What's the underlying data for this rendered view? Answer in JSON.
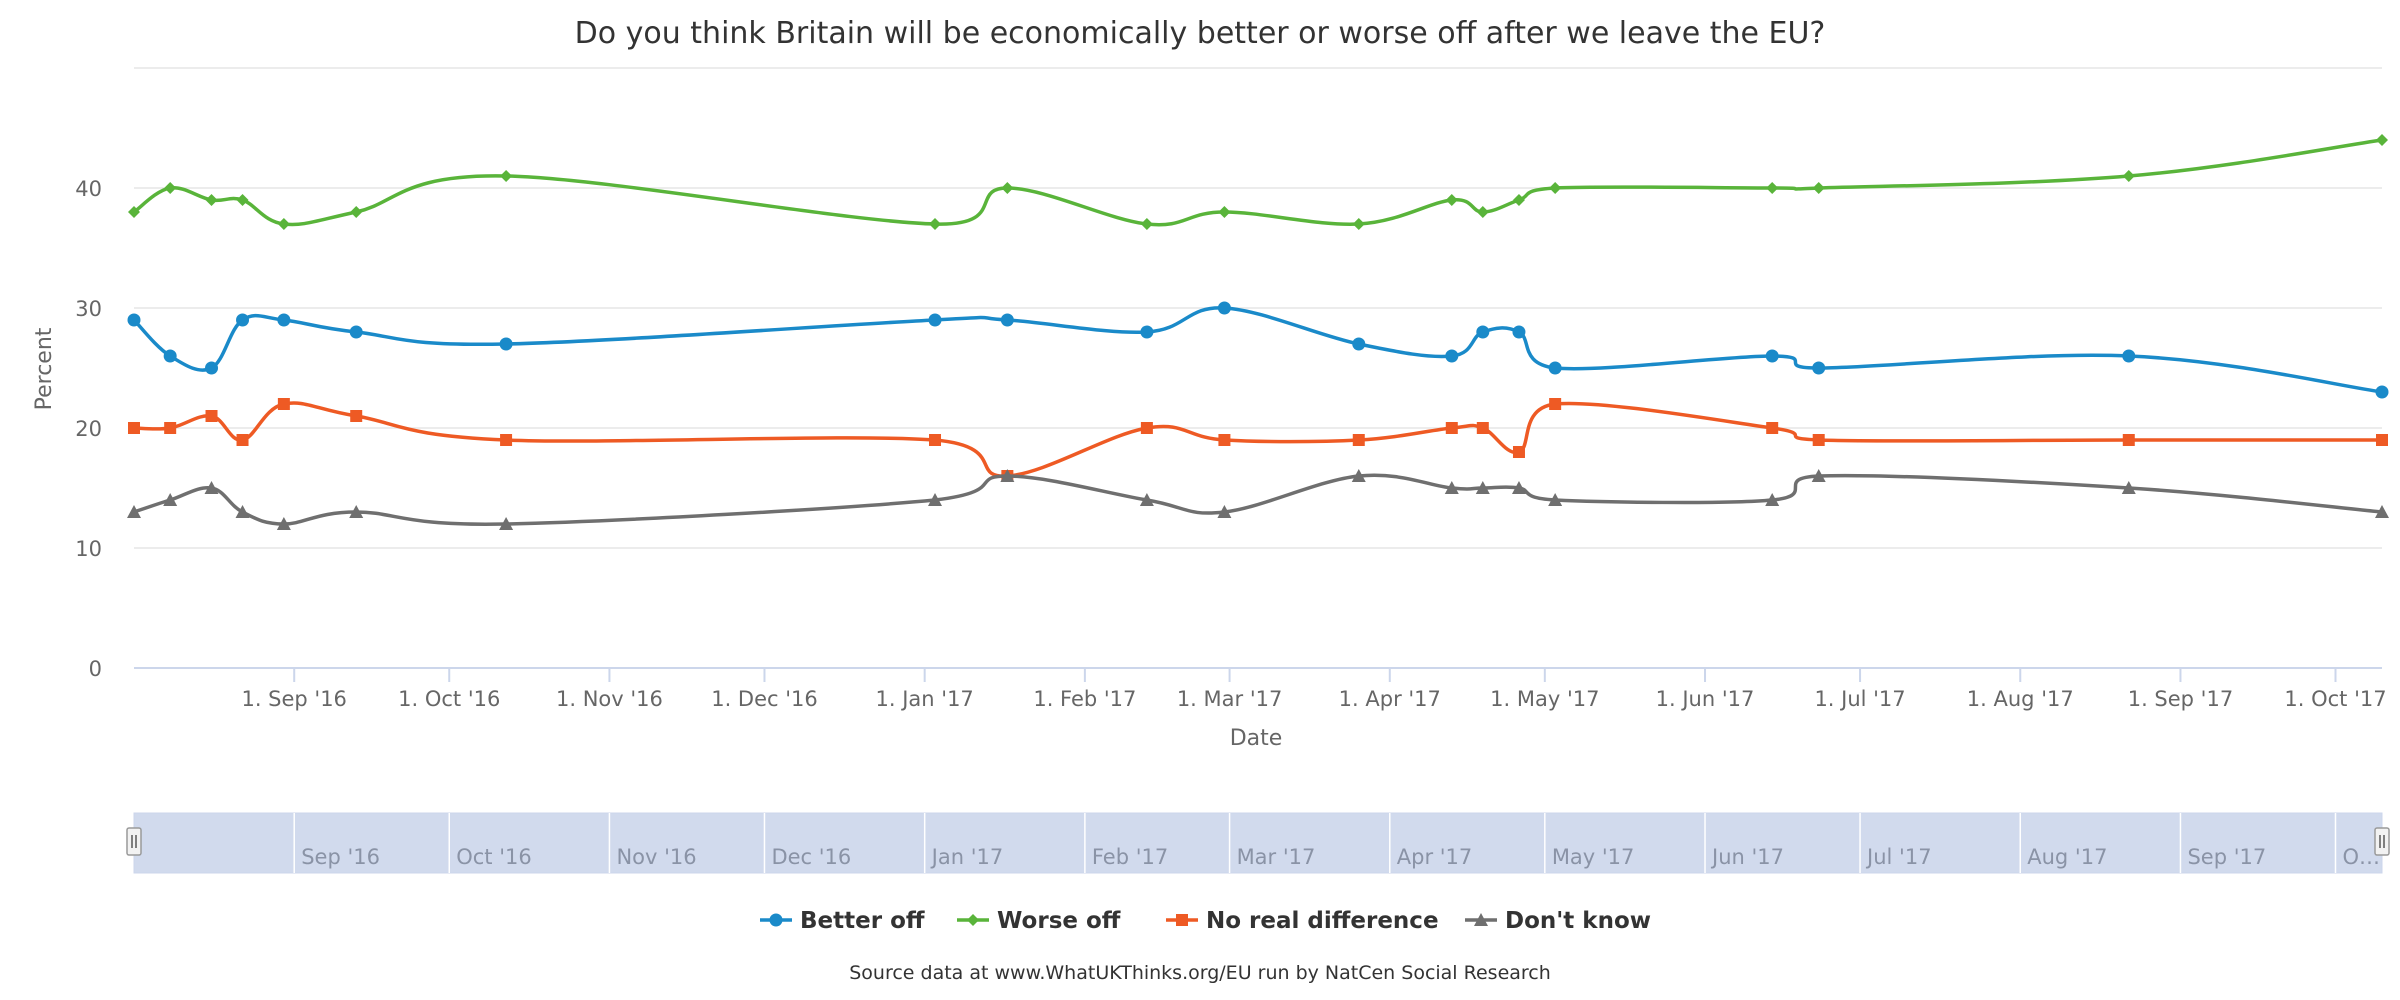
{
  "chart_data": {
    "type": "line",
    "title": "Do you think Britain will be economically better or worse off after we leave the EU?",
    "xlabel": "Date",
    "ylabel": "Percent",
    "ylim": [
      0,
      50
    ],
    "yticks": [
      0,
      10,
      20,
      30,
      40
    ],
    "xlim": [
      "2016-08-01",
      "2017-10-10"
    ],
    "x_ticks": [
      {
        "date": "2016-09-01",
        "label": "1. Sep '16"
      },
      {
        "date": "2016-10-01",
        "label": "1. Oct '16"
      },
      {
        "date": "2016-11-01",
        "label": "1. Nov '16"
      },
      {
        "date": "2016-12-01",
        "label": "1. Dec '16"
      },
      {
        "date": "2017-01-01",
        "label": "1. Jan '17"
      },
      {
        "date": "2017-02-01",
        "label": "1. Feb '17"
      },
      {
        "date": "2017-03-01",
        "label": "1. Mar '17"
      },
      {
        "date": "2017-04-01",
        "label": "1. Apr '17"
      },
      {
        "date": "2017-05-01",
        "label": "1. May '17"
      },
      {
        "date": "2017-06-01",
        "label": "1. Jun '17"
      },
      {
        "date": "2017-07-01",
        "label": "1. Jul '17"
      },
      {
        "date": "2017-08-01",
        "label": "1. Aug '17"
      },
      {
        "date": "2017-09-01",
        "label": "1. Sep '17"
      },
      {
        "date": "2017-10-01",
        "label": "1. Oct '17"
      }
    ],
    "navigator_ticks": [
      {
        "date": "2016-09-01",
        "label": "Sep '16"
      },
      {
        "date": "2016-10-01",
        "label": "Oct '16"
      },
      {
        "date": "2016-11-01",
        "label": "Nov '16"
      },
      {
        "date": "2016-12-01",
        "label": "Dec '16"
      },
      {
        "date": "2017-01-01",
        "label": "Jan '17"
      },
      {
        "date": "2017-02-01",
        "label": "Feb '17"
      },
      {
        "date": "2017-03-01",
        "label": "Mar '17"
      },
      {
        "date": "2017-04-01",
        "label": "Apr '17"
      },
      {
        "date": "2017-05-01",
        "label": "May '17"
      },
      {
        "date": "2017-06-01",
        "label": "Jun '17"
      },
      {
        "date": "2017-07-01",
        "label": "Jul '17"
      },
      {
        "date": "2017-08-01",
        "label": "Aug '17"
      },
      {
        "date": "2017-09-01",
        "label": "Sep '17"
      },
      {
        "date": "2017-10-01",
        "label": "O…"
      }
    ],
    "x": [
      "2016-08-01",
      "2016-08-08",
      "2016-08-16",
      "2016-08-22",
      "2016-08-30",
      "2016-09-13",
      "2016-10-12",
      "2017-01-03",
      "2017-01-17",
      "2017-02-13",
      "2017-02-28",
      "2017-03-26",
      "2017-04-13",
      "2017-04-19",
      "2017-04-26",
      "2017-05-03",
      "2017-06-14",
      "2017-06-23",
      "2017-08-22",
      "2017-10-10"
    ],
    "series": [
      {
        "name": "Better off",
        "color": "#1a8ac9",
        "marker": "circle",
        "values": [
          29,
          26,
          25,
          29,
          29,
          28,
          27,
          29,
          29,
          28,
          30,
          27,
          26,
          28,
          28,
          25,
          26,
          25,
          26,
          23
        ]
      },
      {
        "name": "Worse off",
        "color": "#59b43a",
        "marker": "diamond",
        "values": [
          38,
          40,
          39,
          39,
          37,
          38,
          41,
          37,
          40,
          37,
          38,
          37,
          39,
          38,
          39,
          40,
          40,
          40,
          41,
          44
        ]
      },
      {
        "name": "No real difference",
        "color": "#ee5a24",
        "marker": "square",
        "values": [
          20,
          20,
          21,
          19,
          22,
          21,
          19,
          19,
          16,
          20,
          19,
          19,
          20,
          20,
          18,
          22,
          20,
          19,
          19,
          19
        ]
      },
      {
        "name": "Don't know",
        "color": "#6f6f6f",
        "marker": "triangle",
        "values": [
          13,
          14,
          15,
          13,
          12,
          13,
          12,
          14,
          16,
          14,
          13,
          16,
          15,
          15,
          15,
          14,
          14,
          16,
          15,
          13
        ]
      }
    ],
    "legend_position": "bottom-center",
    "grid": true,
    "credits": "Source data at www.WhatUKThinks.org/EU run by NatCen Social Research"
  }
}
